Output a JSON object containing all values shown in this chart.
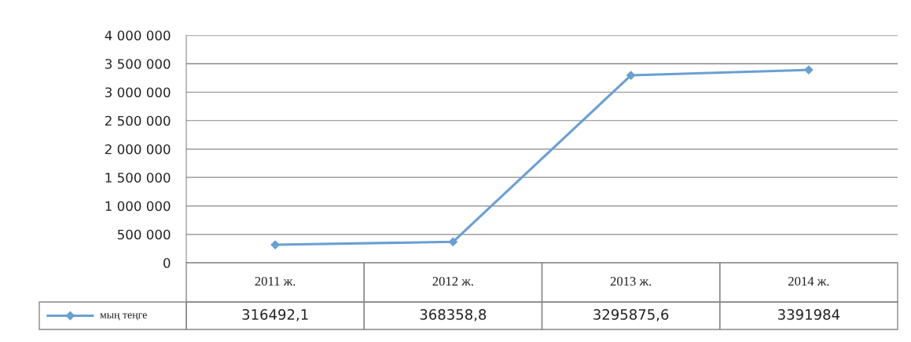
{
  "chart_data": {
    "type": "line",
    "categories": [
      "2011 ж.",
      "2012 ж.",
      "2013 ж.",
      "2014 ж."
    ],
    "series": [
      {
        "name": "мың теңге",
        "color": "#6a9fd4",
        "values": [
          316492.1,
          368358.8,
          3295875.6,
          3391984
        ],
        "value_labels": [
          "316492,1",
          "368358,8",
          "3295875,6",
          "3391984"
        ]
      }
    ],
    "ylim": [
      0,
      4000000
    ],
    "yticks": [
      {
        "value": 0,
        "label": "0"
      },
      {
        "value": 500000,
        "label": "500 000"
      },
      {
        "value": 1000000,
        "label": "1 000 000"
      },
      {
        "value": 1500000,
        "label": "1 500 000"
      },
      {
        "value": 2000000,
        "label": "2 000 000"
      },
      {
        "value": 2500000,
        "label": "2 500 000"
      },
      {
        "value": 3000000,
        "label": "3 000 000"
      },
      {
        "value": 3500000,
        "label": "3 500 000"
      },
      {
        "value": 4000000,
        "label": "4 000 000"
      }
    ],
    "grid": "y",
    "marker": "diamond",
    "line_style": "solid",
    "legend": "bottom"
  }
}
